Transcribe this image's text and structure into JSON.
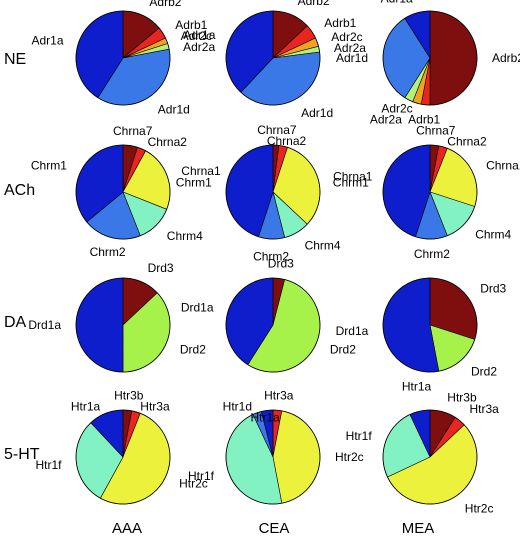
{
  "rows": [
    {
      "label": "NE"
    },
    {
      "label": "ACh"
    },
    {
      "label": "DA"
    },
    {
      "label": "5-HT"
    }
  ],
  "columns": [
    {
      "label": "AAA"
    },
    {
      "label": "CEA"
    },
    {
      "label": "MEA"
    }
  ],
  "colors": {
    "dark_red": "#7f0f0f",
    "red": "#e8261e",
    "orange": "#f2a21e",
    "yellow": "#ecf23c",
    "pale_green": "#b2f27a",
    "light_green": "#a6f24a",
    "aqua": "#82f2c2",
    "light_blue": "#3a78e8",
    "mid_blue": "#2a4ee0",
    "dark_blue": "#0f1ecc"
  },
  "chart_data": [
    {
      "type": "pie",
      "row": "NE",
      "column": "AAA",
      "labels": [
        "Adrb2",
        "Adrb1",
        "Adr2c",
        "Adr2a",
        "Adr1d",
        "Adr1a"
      ],
      "values": [
        14,
        4,
        2,
        2,
        37,
        41
      ],
      "colors": [
        "#7f0f0f",
        "#e8261e",
        "#f2a21e",
        "#b2f27a",
        "#3a78e8",
        "#0f1ecc"
      ]
    },
    {
      "type": "pie",
      "row": "NE",
      "column": "CEA",
      "labels": [
        "Adrb2",
        "Adrb1",
        "Adr2c",
        "Adr2a",
        "Adr1d",
        "Adr1a"
      ],
      "values": [
        13,
        5,
        3,
        2,
        39,
        38
      ],
      "colors": [
        "#7f0f0f",
        "#e8261e",
        "#f2a21e",
        "#b2f27a",
        "#3a78e8",
        "#0f1ecc"
      ]
    },
    {
      "type": "pie",
      "row": "NE",
      "column": "MEA",
      "labels": [
        "Adrb2",
        "Adrb1",
        "Adr2c",
        "Adr2a",
        "Adr1d",
        "Adr1a"
      ],
      "values": [
        50,
        3,
        3,
        3,
        32,
        9
      ],
      "colors": [
        "#7f0f0f",
        "#e8261e",
        "#f2a21e",
        "#b2f27a",
        "#3a78e8",
        "#0f1ecc"
      ]
    },
    {
      "type": "pie",
      "row": "ACh",
      "column": "AAA",
      "labels": [
        "Chrna7",
        "Chrna2",
        "Chrna1",
        "Chrm4",
        "Chrm2",
        "Chrm1"
      ],
      "values": [
        5,
        3,
        23,
        13,
        20,
        36
      ],
      "colors": [
        "#7f0f0f",
        "#e8261e",
        "#ecf23c",
        "#82f2c2",
        "#3a78e8",
        "#0f1ecc"
      ]
    },
    {
      "type": "pie",
      "row": "ACh",
      "column": "CEA",
      "labels": [
        "Chrna7",
        "Chrna2",
        "Chrna1",
        "Chrm4",
        "Chrm2",
        "Chrm1"
      ],
      "values": [
        2,
        3,
        32,
        9,
        9,
        45
      ],
      "colors": [
        "#7f0f0f",
        "#e8261e",
        "#ecf23c",
        "#82f2c2",
        "#3a78e8",
        "#0f1ecc"
      ]
    },
    {
      "type": "pie",
      "row": "ACh",
      "column": "MEA",
      "labels": [
        "Chrna7",
        "Chrna2",
        "Chrna1",
        "Chrm4",
        "Chrm2",
        "Chrm1"
      ],
      "values": [
        3,
        3,
        24,
        14,
        11,
        45
      ],
      "colors": [
        "#7f0f0f",
        "#e8261e",
        "#ecf23c",
        "#82f2c2",
        "#3a78e8",
        "#0f1ecc"
      ]
    },
    {
      "type": "pie",
      "row": "DA",
      "column": "AAA",
      "labels": [
        "Drd3",
        "Drd2",
        "Drd1a"
      ],
      "values": [
        13,
        37,
        50
      ],
      "colors": [
        "#7f0f0f",
        "#a6f24a",
        "#0f1ecc"
      ]
    },
    {
      "type": "pie",
      "row": "DA",
      "column": "CEA",
      "labels": [
        "Drd3",
        "Drd2",
        "Drd1a"
      ],
      "values": [
        4,
        55,
        41
      ],
      "colors": [
        "#7f0f0f",
        "#a6f24a",
        "#0f1ecc"
      ]
    },
    {
      "type": "pie",
      "row": "DA",
      "column": "MEA",
      "labels": [
        "Drd3",
        "Drd2",
        "Drd1a"
      ],
      "values": [
        30,
        17,
        53
      ],
      "colors": [
        "#7f0f0f",
        "#a6f24a",
        "#0f1ecc"
      ]
    },
    {
      "type": "pie",
      "row": "5-HT",
      "column": "AAA",
      "labels": [
        "Htr3b",
        "Htr3a",
        "Htr2c",
        "Htr1f",
        "Htr1a"
      ],
      "values": [
        3,
        3,
        52,
        30,
        12
      ],
      "colors": [
        "#7f0f0f",
        "#e8261e",
        "#ecf23c",
        "#82f2c2",
        "#0f1ecc"
      ]
    },
    {
      "type": "pie",
      "row": "5-HT",
      "column": "CEA",
      "labels": [
        "Htr3a",
        "Htr2c",
        "Htr1f",
        "Htr1d",
        "Htr1a"
      ],
      "values": [
        3,
        44,
        46,
        3,
        4
      ],
      "colors": [
        "#e8261e",
        "#ecf23c",
        "#82f2c2",
        "#3a78e8",
        "#0f1ecc"
      ]
    },
    {
      "type": "pie",
      "row": "5-HT",
      "column": "MEA",
      "labels": [
        "Htr3b",
        "Htr3a",
        "Htr2c",
        "Htr1f",
        "Htr1a"
      ],
      "values": [
        9,
        4,
        55,
        25,
        7
      ],
      "colors": [
        "#7f0f0f",
        "#e8261e",
        "#ecf23c",
        "#82f2c2",
        "#0f1ecc"
      ]
    }
  ]
}
